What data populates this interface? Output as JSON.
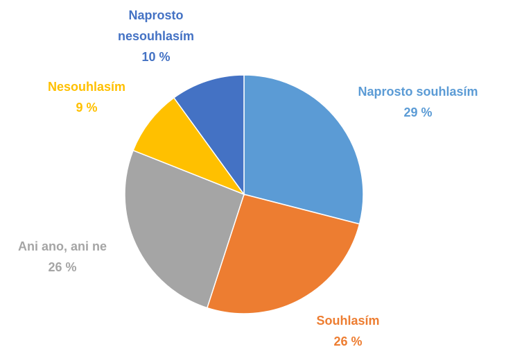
{
  "chart_data": {
    "type": "pie",
    "categories": [
      "Naprosto souhlasím",
      "Souhlasím",
      "Ani ano, ani ne",
      "Nesouhlasím",
      "Naprosto nesouhlasím"
    ],
    "values": [
      29,
      26,
      26,
      9,
      10
    ],
    "value_labels": [
      "29 %",
      "26 %",
      "26 %",
      "9 %",
      "10 %"
    ],
    "colors": [
      "#5b9bd5",
      "#ed7d31",
      "#a5a5a5",
      "#ffc000",
      "#4472c4"
    ]
  }
}
